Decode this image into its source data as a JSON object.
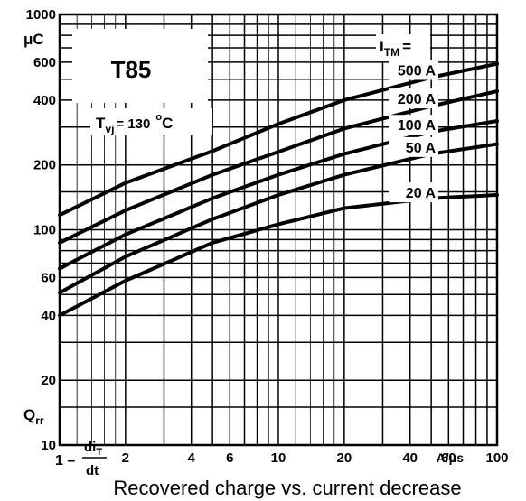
{
  "chart_data": {
    "type": "line",
    "title": "T85",
    "caption": "Recovered charge vs. current decrease",
    "condition": {
      "symbol": "T",
      "sub": "vj",
      "value": "= 130",
      "unit_sup": "o",
      "unit": "C"
    },
    "ylabel": {
      "symbol": "Q",
      "sub": "rr",
      "unit": "μC"
    },
    "xlabel": {
      "prefix": "1 –",
      "num": "di",
      "num_sub": "T",
      "den": "dt",
      "unit": "A/μs"
    },
    "legend_title": {
      "symbol": "I",
      "sub": "TM",
      "suffix": "="
    },
    "x_scale": "log",
    "y_scale": "log",
    "xlim": [
      1,
      100
    ],
    "ylim": [
      10,
      1000
    ],
    "x_ticks": [
      {
        "v": 2,
        "t": "2"
      },
      {
        "v": 4,
        "t": "4"
      },
      {
        "v": 6,
        "t": "6"
      },
      {
        "v": 10,
        "t": "10"
      },
      {
        "v": 20,
        "t": "20"
      },
      {
        "v": 40,
        "t": "40"
      },
      {
        "v": 60,
        "t": "60"
      },
      {
        "v": 100,
        "t": "100"
      }
    ],
    "y_ticks": [
      {
        "v": 1000,
        "t": "1000"
      },
      {
        "v": 600,
        "t": "600"
      },
      {
        "v": 400,
        "t": "400"
      },
      {
        "v": 200,
        "t": "200"
      },
      {
        "v": 100,
        "t": "100"
      },
      {
        "v": 60,
        "t": "60"
      },
      {
        "v": 40,
        "t": "40"
      },
      {
        "v": 20,
        "t": "20"
      },
      {
        "v": 10,
        "t": "10"
      }
    ],
    "grid": true,
    "series": [
      {
        "name": "500 A",
        "x": [
          1,
          2,
          5,
          10,
          20,
          50,
          100
        ],
        "y": [
          117,
          165,
          232,
          310,
          400,
          510,
          590
        ]
      },
      {
        "name": "200 A",
        "x": [
          1,
          2,
          5,
          10,
          20,
          50,
          100
        ],
        "y": [
          87,
          123,
          180,
          230,
          295,
          375,
          440
        ]
      },
      {
        "name": "100 A",
        "x": [
          1,
          2,
          5,
          10,
          20,
          50,
          100
        ],
        "y": [
          66,
          95,
          140,
          180,
          225,
          285,
          320
        ]
      },
      {
        "name": "50 A",
        "x": [
          1,
          2,
          5,
          10,
          20,
          50,
          100
        ],
        "y": [
          51,
          75,
          112,
          145,
          180,
          225,
          250
        ]
      },
      {
        "name": "20 A",
        "x": [
          1,
          2,
          5,
          10,
          20,
          50,
          100
        ],
        "y": [
          40,
          58,
          87,
          106,
          126,
          140,
          145
        ]
      }
    ]
  }
}
